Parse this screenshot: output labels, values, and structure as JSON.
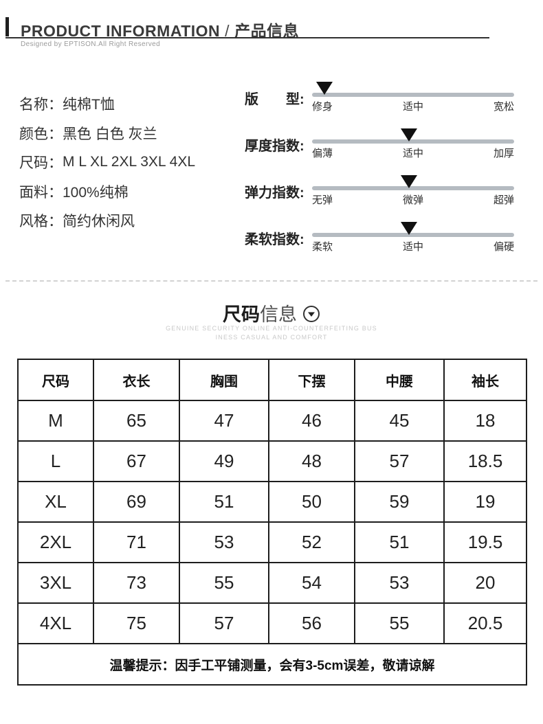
{
  "header": {
    "title_en": "PRODUCT INFORMATION",
    "slash": "/",
    "title_zh": "产品信息",
    "subtitle": "Designed by EPTISON.All Right Reserved"
  },
  "attributes": [
    {
      "label": "名称：",
      "value": "纯棉T恤"
    },
    {
      "label": "颜色：",
      "value": "黑色  白色  灰兰"
    },
    {
      "label": "尺码：",
      "value": "M  L  XL  2XL  3XL  4XL"
    },
    {
      "label": "面料：",
      "value": "100%纯棉"
    },
    {
      "label": "风格：",
      "value": "简约休闲风"
    }
  ],
  "indices": [
    {
      "label": "版　　型:",
      "marks": [
        "修身",
        "适中",
        "宽松"
      ],
      "position_pct": 6
    },
    {
      "label": "厚度指数:",
      "marks": [
        "偏薄",
        "适中",
        "加厚"
      ],
      "position_pct": 48
    },
    {
      "label": "弹力指数:",
      "marks": [
        "无弹",
        "微弹",
        "超弹"
      ],
      "position_pct": 48
    },
    {
      "label": "柔软指数:",
      "marks": [
        "柔软",
        "适中",
        "偏硬"
      ],
      "position_pct": 48
    }
  ],
  "size_info": {
    "title_strong": "尺码",
    "title_light": "信息",
    "tagline_line1": "GENUINE SECURITY ONLINE ANTI-COUNTERFEITING BUS",
    "tagline_line2": "INESS CASUAL AND COMFORT"
  },
  "size_table": {
    "headers": [
      "尺码",
      "衣长",
      "胸围",
      "下摆",
      "中腰",
      "袖长"
    ],
    "rows": [
      [
        "M",
        "65",
        "47",
        "46",
        "45",
        "18"
      ],
      [
        "L",
        "67",
        "49",
        "48",
        "57",
        "18.5"
      ],
      [
        "XL",
        "69",
        "51",
        "50",
        "59",
        "19"
      ],
      [
        "2XL",
        "71",
        "53",
        "52",
        "51",
        "19.5"
      ],
      [
        "3XL",
        "73",
        "55",
        "54",
        "53",
        "20"
      ],
      [
        "4XL",
        "75",
        "57",
        "56",
        "55",
        "20.5"
      ]
    ],
    "note": "温馨提示：因手工平铺测量，会有3-5cm误差，敬请谅解"
  },
  "colors": {
    "accent_bar": "#1f1f1f",
    "slider_bar": "#b5bbc1",
    "slider_marker": "#111111",
    "tagline_gray": "#c9c9c9",
    "subtitle_gray": "#9a9a9a",
    "table_border": "#1d1d1d",
    "dashed_divider": "#d2d2d2"
  }
}
